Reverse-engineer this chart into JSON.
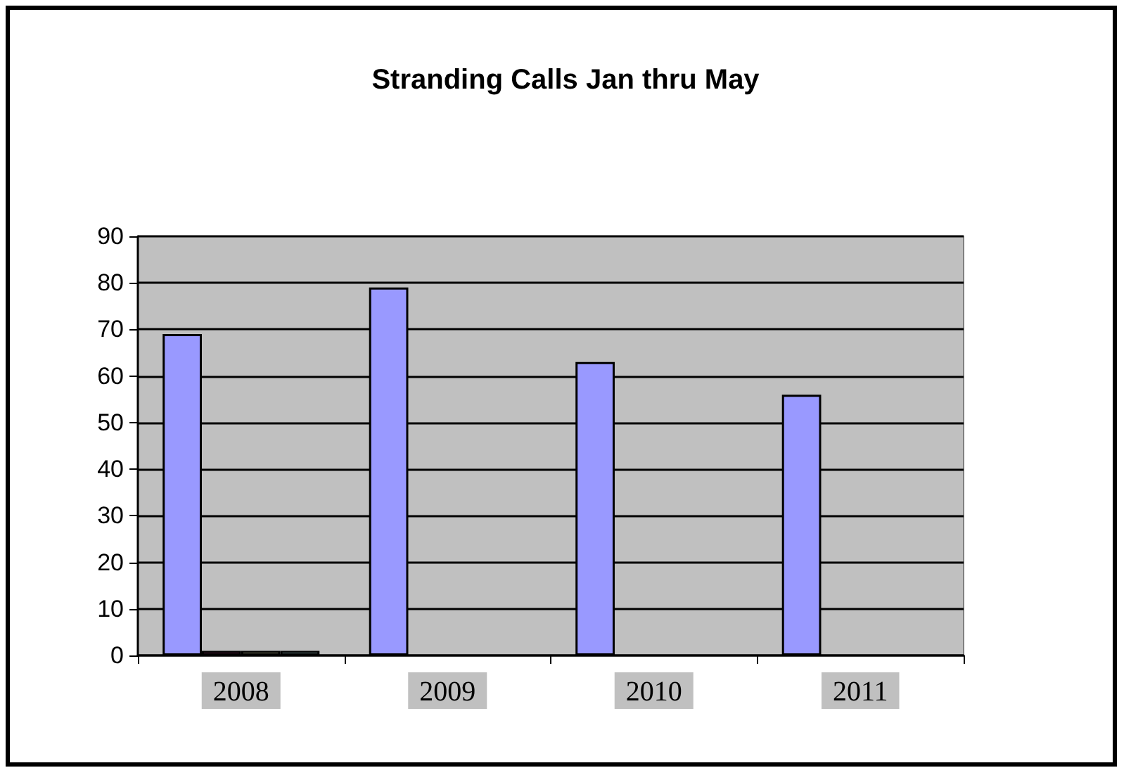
{
  "chart_data": {
    "type": "bar",
    "title": "Stranding Calls Jan thru May",
    "categories": [
      "2008",
      "2009",
      "2010",
      "2011"
    ],
    "series": [
      {
        "color": "#9999ff",
        "values": [
          69,
          79,
          63,
          56
        ]
      },
      {
        "color": "#993366",
        "values": [
          1,
          null,
          null,
          null
        ]
      },
      {
        "color": "#ffffcc",
        "values": [
          1,
          null,
          null,
          null
        ]
      },
      {
        "color": "#ccffff",
        "values": [
          1,
          null,
          null,
          null
        ]
      }
    ],
    "ylim": [
      0,
      90
    ],
    "yticks": [
      0,
      10,
      20,
      30,
      40,
      50,
      60,
      70,
      80,
      90
    ],
    "grid": "y"
  }
}
